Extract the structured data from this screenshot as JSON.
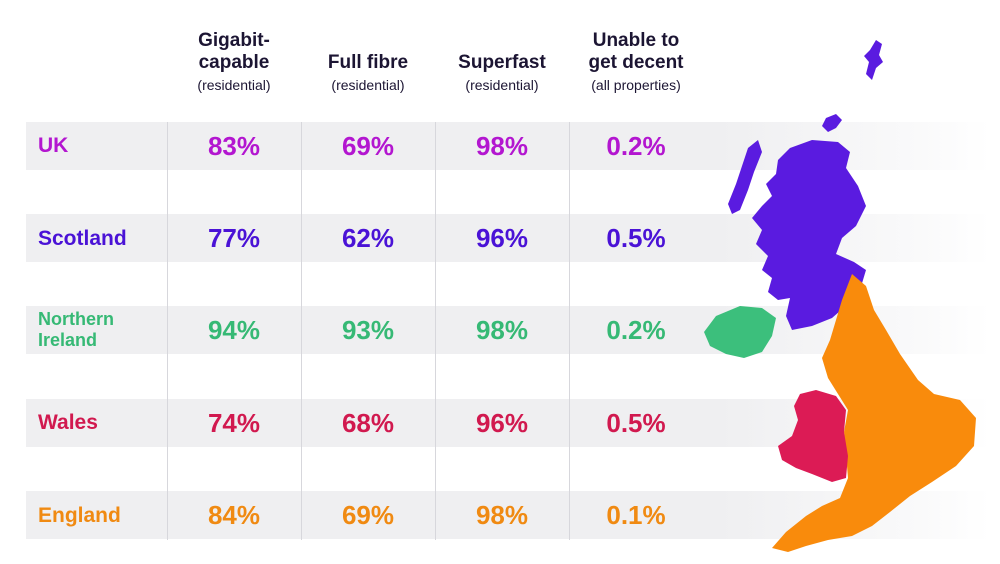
{
  "columns": [
    {
      "title": "Gigabit-",
      "title2": "capable",
      "sub": "(residential)"
    },
    {
      "title": "Full fibre",
      "title2": "",
      "sub": "(residential)"
    },
    {
      "title": "Superfast",
      "title2": "",
      "sub": "(residential)"
    },
    {
      "title": "Unable to",
      "title2": "get decent",
      "sub": "(all properties)"
    }
  ],
  "rows": [
    {
      "label": "UK",
      "label2": "",
      "color": "#b316d0",
      "values": [
        "83%",
        "69%",
        "98%",
        "0.2%"
      ]
    },
    {
      "label": "Scotland",
      "label2": "",
      "color": "#4a12d6",
      "values": [
        "77%",
        "62%",
        "96%",
        "0.5%"
      ]
    },
    {
      "label": "Northern",
      "label2": "Ireland",
      "color": "#36b975",
      "values": [
        "94%",
        "93%",
        "98%",
        "0.2%"
      ]
    },
    {
      "label": "Wales",
      "label2": "",
      "color": "#d1194f",
      "values": [
        "74%",
        "68%",
        "96%",
        "0.5%"
      ]
    },
    {
      "label": "England",
      "label2": "",
      "color": "#f08a12",
      "values": [
        "84%",
        "69%",
        "98%",
        "0.1%"
      ]
    }
  ],
  "map": {
    "scotland_color": "#5a1be0",
    "ni_color": "#3cbf7c",
    "wales_color": "#dc1b55",
    "england_color": "#f98b0c"
  },
  "chart_data": {
    "type": "table",
    "categories": [
      "UK",
      "Scotland",
      "Northern Ireland",
      "Wales",
      "England"
    ],
    "series": [
      {
        "name": "Gigabit-capable (residential)",
        "values": [
          83,
          77,
          94,
          74,
          84
        ]
      },
      {
        "name": "Full fibre (residential)",
        "values": [
          69,
          62,
          93,
          68,
          69
        ]
      },
      {
        "name": "Superfast (residential)",
        "values": [
          98,
          96,
          98,
          96,
          98
        ]
      },
      {
        "name": "Unable to get decent (all properties)",
        "values": [
          0.2,
          0.5,
          0.2,
          0.5,
          0.1
        ]
      }
    ],
    "unit": "%"
  }
}
